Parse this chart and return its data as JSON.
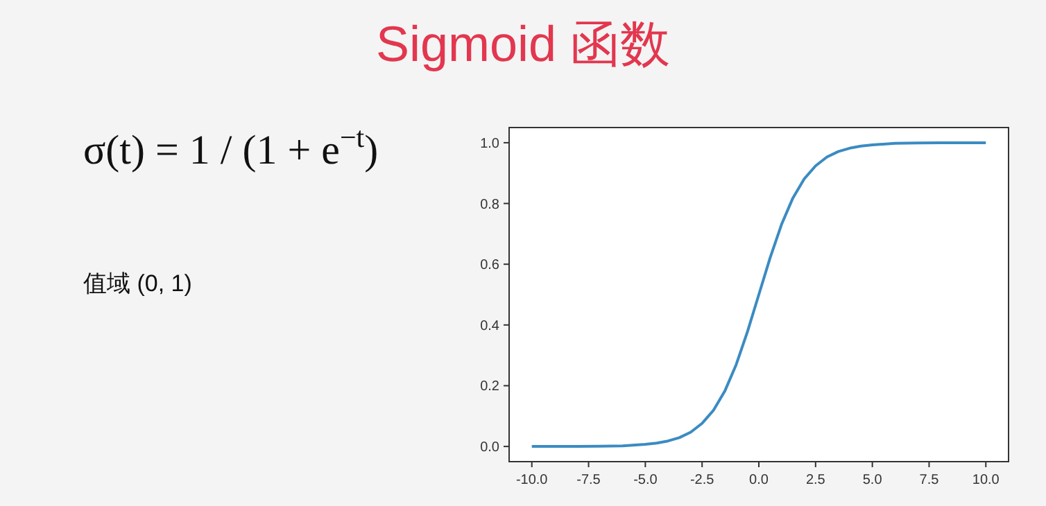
{
  "chart_data": {
    "type": "line",
    "title": "Sigmoid 函数",
    "annotations": [
      "σ(t) = 1 / (1 + e$^{−t}$)",
      "值域 (0, 1)"
    ],
    "x": [
      -10,
      -9,
      -8,
      -7,
      -6,
      -5,
      -4.5,
      -4,
      -3.5,
      -3,
      -2.5,
      -2,
      -1.5,
      -1,
      -0.5,
      0,
      0.5,
      1,
      1.5,
      2,
      2.5,
      3,
      3.5,
      4,
      4.5,
      5,
      6,
      7,
      8,
      9,
      10
    ],
    "series": [
      {
        "color": "#3b8bc2",
        "values": [
          0.0,
          0.0,
          0.0,
          0.001,
          0.002,
          0.007,
          0.011,
          0.018,
          0.029,
          0.047,
          0.076,
          0.119,
          0.182,
          0.269,
          0.378,
          0.5,
          0.622,
          0.731,
          0.818,
          0.881,
          0.924,
          0.953,
          0.971,
          0.982,
          0.989,
          0.993,
          0.998,
          0.999,
          1.0,
          1.0,
          1.0
        ]
      }
    ],
    "xlim": [
      -11,
      11
    ],
    "xticks": [
      {
        "value": -10,
        "label": "-10.0"
      },
      -7.5,
      {
        "value": -5,
        "label": "-5.0"
      },
      -2.5,
      {
        "value": 0,
        "label": "0.0"
      },
      2.5,
      {
        "value": 5,
        "label": "5.0"
      },
      7.5,
      {
        "value": 10,
        "label": "10.0"
      }
    ],
    "ylim": [
      -0.05,
      1.05
    ],
    "yticks": [
      {
        "value": 0,
        "label": "0.0"
      },
      0.2,
      0.4,
      0.6,
      0.8,
      {
        "value": 1,
        "label": "1.0"
      }
    ],
    "grid": false,
    "marker": "none",
    "line_style": "solid"
  }
}
